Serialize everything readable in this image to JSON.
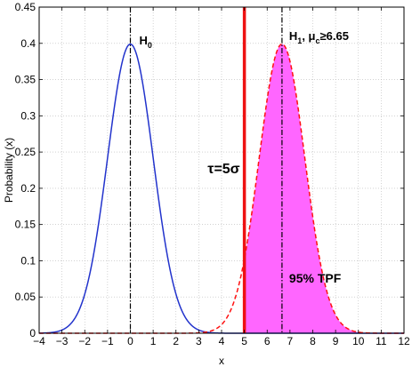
{
  "chart_data": {
    "type": "line",
    "xlabel": "x",
    "ylabel": "Probability (x)",
    "xlim": [
      -4,
      12
    ],
    "ylim": [
      0,
      0.45
    ],
    "xticks": [
      -4,
      -3,
      -2,
      -1,
      0,
      1,
      2,
      3,
      4,
      5,
      6,
      7,
      8,
      9,
      10,
      11,
      12
    ],
    "yticks": [
      0,
      0.05,
      0.1,
      0.15,
      0.2,
      0.25,
      0.3,
      0.35,
      0.4,
      0.45
    ],
    "grid": true,
    "series": [
      {
        "distribution": "normal",
        "mean": 0,
        "sd": 1,
        "peak": 0.3989,
        "color": "#2233cc",
        "style": "solid"
      },
      {
        "distribution": "normal",
        "mean": 6.65,
        "sd": 1,
        "peak": 0.3989,
        "color": "#ff1111",
        "style": "dashed",
        "fill_from": 5,
        "fill_color": "#ff66ff"
      }
    ],
    "vlines": [
      {
        "x": 0,
        "style": "dashdot",
        "color": "#000000"
      },
      {
        "x": 6.65,
        "style": "dashdot",
        "color": "#000000"
      },
      {
        "x": 5,
        "style": "solid",
        "color": "#ee1111"
      }
    ],
    "annotations": {
      "h0": {
        "main": "H",
        "sub": "0"
      },
      "h1": {
        "main": "H",
        "sub1": "1",
        "mid": ", μ",
        "sub2": "c",
        "tail": "≥6.65"
      },
      "tau": "τ=5σ",
      "tpf": "95% TPF"
    }
  }
}
